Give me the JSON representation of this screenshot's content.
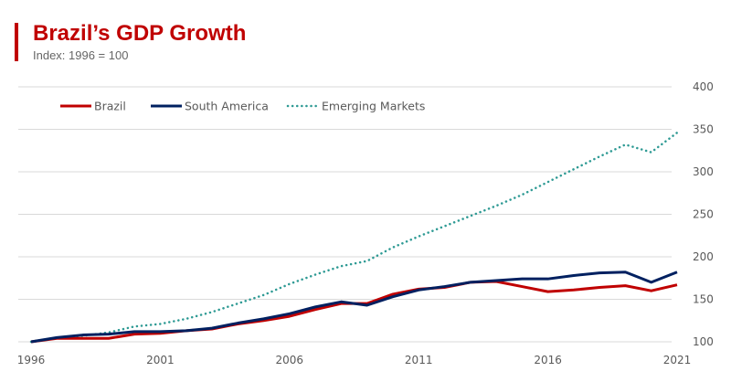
{
  "title": "Brazil’s GDP Growth",
  "subtitle": "Index: 1996 = 100",
  "chart_data": {
    "type": "line",
    "title": "Brazil’s GDP Growth",
    "subtitle": "Index: 1996 = 100",
    "x": [
      1996,
      1997,
      1998,
      1999,
      2000,
      2001,
      2002,
      2003,
      2004,
      2005,
      2006,
      2007,
      2008,
      2009,
      2010,
      2011,
      2012,
      2013,
      2014,
      2015,
      2016,
      2017,
      2018,
      2019,
      2020,
      2021
    ],
    "x_ticks": [
      "1996",
      "2001",
      "2006",
      "2011",
      "2016",
      "2021"
    ],
    "y_ticks": [
      "100",
      "150",
      "200",
      "250",
      "300",
      "350",
      "400"
    ],
    "ylim": [
      100,
      400
    ],
    "y_axis_side": "right",
    "grid": "horizontal",
    "legend": "top-left",
    "series": [
      {
        "name": "Brazil",
        "color": "#c00000",
        "style": "solid",
        "values": [
          100,
          104,
          104,
          104,
          109,
          110,
          113,
          115,
          121,
          125,
          130,
          138,
          145,
          145,
          156,
          162,
          164,
          170,
          171,
          165,
          159,
          161,
          164,
          166,
          160,
          167
        ]
      },
      {
        "name": "South America",
        "color": "#002060",
        "style": "solid",
        "values": [
          100,
          105,
          108,
          109,
          112,
          112,
          113,
          116,
          122,
          127,
          133,
          141,
          147,
          143,
          153,
          161,
          165,
          170,
          172,
          174,
          174,
          178,
          181,
          182,
          170,
          182
        ]
      },
      {
        "name": "Emerging Markets",
        "color": "#2e9a94",
        "style": "dotted",
        "values": [
          100,
          105,
          107,
          111,
          118,
          121,
          127,
          135,
          145,
          155,
          168,
          179,
          189,
          195,
          211,
          224,
          236,
          248,
          260,
          273,
          288,
          303,
          318,
          332,
          323,
          346
        ]
      }
    ]
  }
}
